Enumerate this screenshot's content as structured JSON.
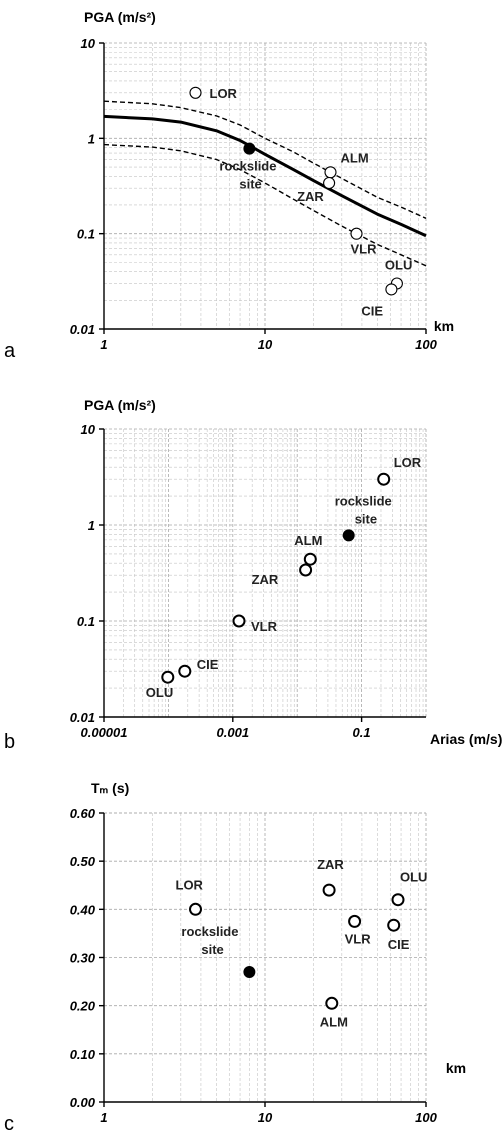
{
  "chart_data": [
    {
      "panel": "a",
      "type": "scatter",
      "title": "PGA (m/s²)",
      "xlabel": "km",
      "ylabel": "",
      "x_scale": "log",
      "y_scale": "log",
      "xlim": [
        1,
        100
      ],
      "ylim": [
        0.01,
        10
      ],
      "x_ticks": [
        "1",
        "10",
        "100"
      ],
      "y_ticks": [
        "0.01",
        "0.1",
        "1",
        "10"
      ],
      "grid": true,
      "points": [
        {
          "label": "LOR",
          "x": 3.7,
          "y": 3.0,
          "fill": "open"
        },
        {
          "label": "rockslide site",
          "x": 8.0,
          "y": 0.78,
          "fill": "filled"
        },
        {
          "label": "ALM",
          "x": 25.5,
          "y": 0.44,
          "fill": "open"
        },
        {
          "label": "ZAR",
          "x": 25.0,
          "y": 0.34,
          "fill": "open"
        },
        {
          "label": "VLR",
          "x": 37.0,
          "y": 0.1,
          "fill": "open"
        },
        {
          "label": "OLU",
          "x": 66.0,
          "y": 0.03,
          "fill": "open"
        },
        {
          "label": "CIE",
          "x": 61.0,
          "y": 0.026,
          "fill": "open"
        }
      ],
      "curves": [
        {
          "style": "solid",
          "x": [
            1,
            2,
            3,
            5,
            7,
            10,
            15,
            20,
            30,
            50,
            70,
            100
          ],
          "y": [
            1.7,
            1.6,
            1.48,
            1.2,
            0.95,
            0.68,
            0.47,
            0.36,
            0.25,
            0.16,
            0.125,
            0.095
          ]
        },
        {
          "style": "dashed",
          "x": [
            1,
            2,
            3,
            5,
            7,
            10,
            15,
            20,
            30,
            50,
            70,
            100
          ],
          "y": [
            2.45,
            2.3,
            2.1,
            1.72,
            1.38,
            1.0,
            0.72,
            0.55,
            0.38,
            0.24,
            0.19,
            0.145
          ]
        },
        {
          "style": "dashed",
          "x": [
            1,
            2,
            3,
            5,
            7,
            10,
            15,
            20,
            30,
            50,
            70,
            100
          ],
          "y": [
            0.86,
            0.81,
            0.74,
            0.6,
            0.47,
            0.34,
            0.23,
            0.175,
            0.12,
            0.077,
            0.06,
            0.046
          ]
        }
      ]
    },
    {
      "panel": "b",
      "type": "scatter",
      "title": "PGA (m/s²)",
      "xlabel": "Arias (m/s)",
      "ylabel": "",
      "x_scale": "log",
      "y_scale": "log",
      "xlim": [
        1e-05,
        1
      ],
      "ylim": [
        0.01,
        10
      ],
      "x_ticks": [
        "0.00001",
        "0.001",
        "0.1"
      ],
      "y_ticks": [
        "0.01",
        "0.1",
        "1",
        "10"
      ],
      "grid": true,
      "points": [
        {
          "label": "LOR",
          "x": 0.22,
          "y": 3.0,
          "fill": "open"
        },
        {
          "label": "rockslide site",
          "x": 0.063,
          "y": 0.78,
          "fill": "filled"
        },
        {
          "label": "ALM",
          "x": 0.016,
          "y": 0.44,
          "fill": "open"
        },
        {
          "label": "ZAR",
          "x": 0.0135,
          "y": 0.34,
          "fill": "open"
        },
        {
          "label": "VLR",
          "x": 0.00125,
          "y": 0.1,
          "fill": "open"
        },
        {
          "label": "CIE",
          "x": 0.00018,
          "y": 0.03,
          "fill": "open"
        },
        {
          "label": "OLU",
          "x": 9.8e-05,
          "y": 0.026,
          "fill": "open"
        }
      ]
    },
    {
      "panel": "c",
      "type": "scatter",
      "title": "Tₘ (s)",
      "xlabel": "km",
      "ylabel": "",
      "x_scale": "log",
      "y_scale": "linear",
      "xlim": [
        1,
        100
      ],
      "ylim": [
        0,
        0.6
      ],
      "x_ticks": [
        "1",
        "10",
        "100"
      ],
      "y_ticks": [
        "0.00",
        "0.10",
        "0.20",
        "0.30",
        "0.40",
        "0.50",
        "0.60"
      ],
      "grid": true,
      "points": [
        {
          "label": "LOR",
          "x": 3.7,
          "y": 0.4,
          "fill": "open"
        },
        {
          "label": "rockslide site",
          "x": 8.0,
          "y": 0.27,
          "fill": "filled"
        },
        {
          "label": "ZAR",
          "x": 25.0,
          "y": 0.44,
          "fill": "open"
        },
        {
          "label": "ALM",
          "x": 26.0,
          "y": 0.205,
          "fill": "open"
        },
        {
          "label": "VLR",
          "x": 36.0,
          "y": 0.375,
          "fill": "open"
        },
        {
          "label": "OLU",
          "x": 67.0,
          "y": 0.42,
          "fill": "open"
        },
        {
          "label": "CIE",
          "x": 63.0,
          "y": 0.367,
          "fill": "open"
        }
      ]
    }
  ]
}
